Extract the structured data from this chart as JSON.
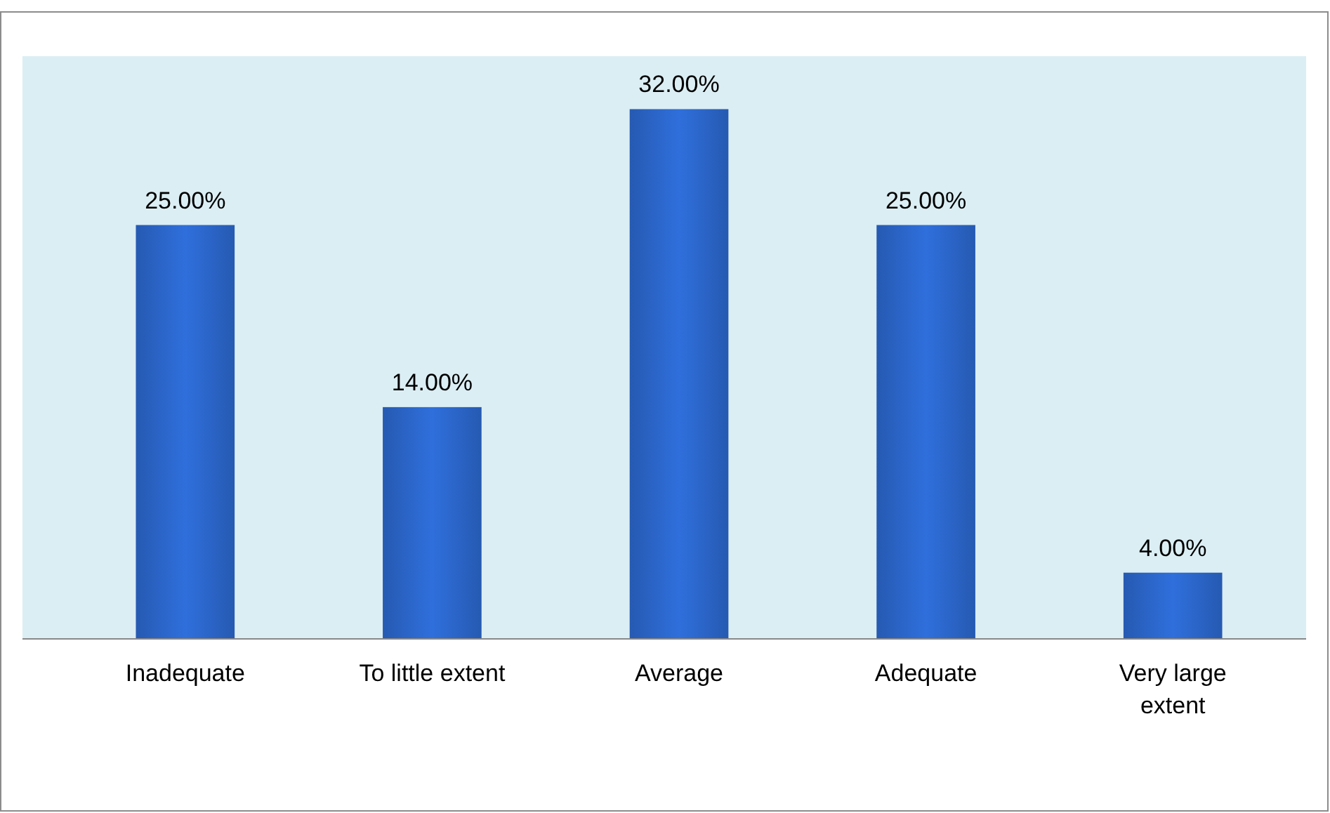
{
  "chart_data": {
    "type": "bar",
    "categories": [
      "Inadequate",
      "To little extent",
      "Average",
      "Adequate",
      "Very large extent"
    ],
    "values": [
      25,
      14,
      32,
      25,
      4
    ],
    "value_labels": [
      "25.00%",
      "14.00%",
      "32.00%",
      "25.00%",
      "4.00%"
    ],
    "color": "#2f6fdc"
  }
}
